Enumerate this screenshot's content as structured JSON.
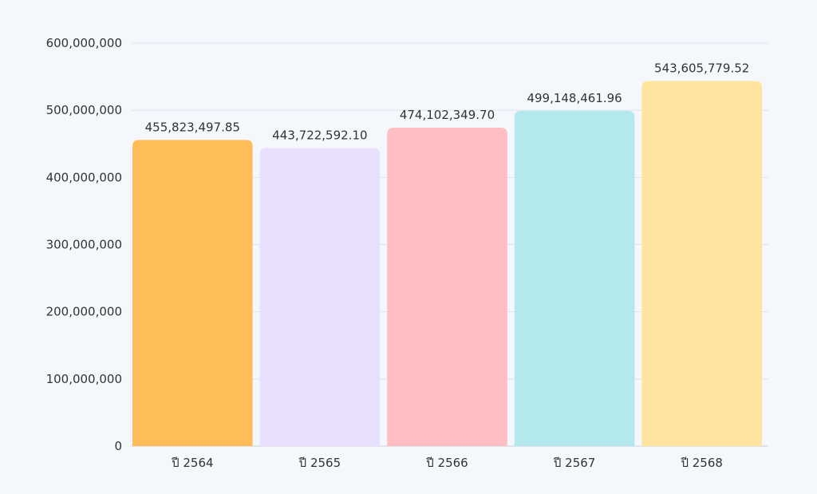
{
  "chart_data": {
    "type": "bar",
    "title": "",
    "xlabel": "",
    "ylabel": "",
    "categories": [
      "ปี 2564",
      "ปี 2565",
      "ปี 2566",
      "ปี 2567",
      "ปี 2568"
    ],
    "values": [
      455823497.85,
      443722592.1,
      474102349.7,
      499148461.96,
      543605779.52
    ],
    "data_labels": [
      "455,823,497.85",
      "443,722,592.10",
      "474,102,349.70",
      "499,148,461.96",
      "543,605,779.52"
    ],
    "colors": [
      "#ffbd59",
      "#e8e0fd",
      "#ffbdc4",
      "#b3e9ed",
      "#ffe49f"
    ],
    "ylim": [
      0,
      600000000
    ],
    "yticks": [
      0,
      100000000,
      200000000,
      300000000,
      400000000,
      500000000,
      600000000
    ],
    "ytick_labels": [
      "0",
      "100,000,000",
      "200,000,000",
      "300,000,000",
      "400,000,000",
      "500,000,000",
      "600,000,000"
    ],
    "grid": true,
    "legend": "none"
  }
}
